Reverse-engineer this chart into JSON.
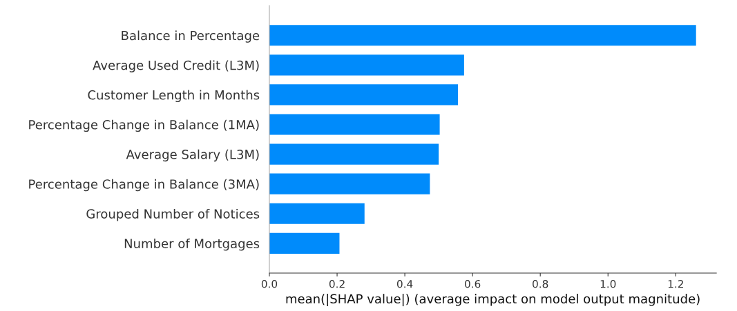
{
  "chart_data": {
    "type": "bar",
    "orientation": "horizontal",
    "categories": [
      "Balance in Percentage",
      "Average Used Credit (L3M)",
      "Customer Length in Months",
      "Percentage Change in Balance (1MA)",
      "Average Salary (L3M)",
      "Percentage Change in Balance (3MA)",
      "Grouped Number of Notices",
      "Number of Mortgages"
    ],
    "values": [
      1.26,
      0.575,
      0.557,
      0.503,
      0.5,
      0.474,
      0.281,
      0.207
    ],
    "color": "#008bfb",
    "xlabel": "mean(|SHAP value|) (average impact on model output magnitude)",
    "xlim": [
      0,
      1.32
    ],
    "xticks": [
      {
        "value": 0,
        "label": "0.0"
      },
      {
        "value": 0.2,
        "label": "0.2"
      },
      {
        "value": 0.4,
        "label": "0.4"
      },
      {
        "value": 0.6,
        "label": "0.6"
      },
      {
        "value": 0.8,
        "label": "0.8"
      },
      {
        "value": 1.0,
        "label": "1.0"
      },
      {
        "value": 1.2,
        "label": "1.2"
      }
    ],
    "grid": false,
    "legend": false
  }
}
